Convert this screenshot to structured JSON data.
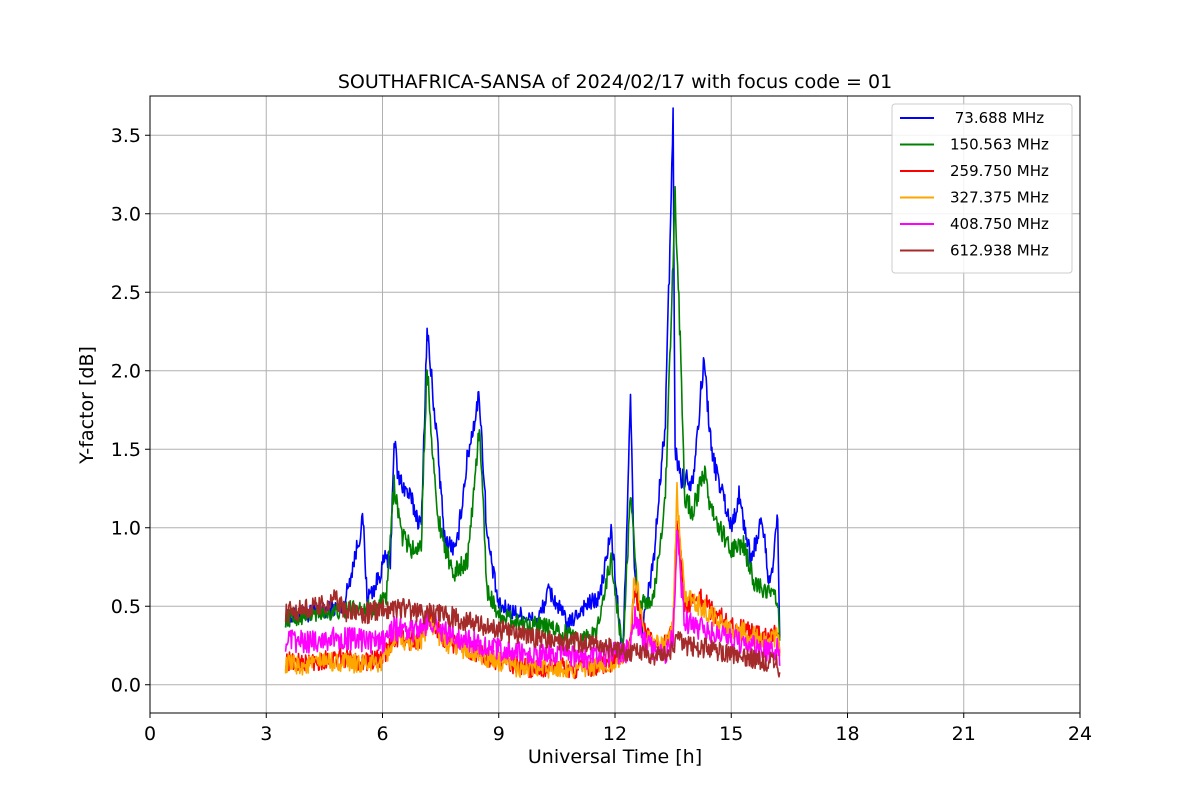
{
  "chart_data": {
    "type": "line",
    "title": "SOUTHAFRICA-SANSA of 2024/02/17 with focus code = 01",
    "xlabel": "Universal Time [h]",
    "ylabel": "Y-factor [dB]",
    "xlim": [
      0,
      24
    ],
    "ylim": [
      -0.18,
      3.75
    ],
    "xticks": [
      0,
      3,
      6,
      9,
      12,
      15,
      18,
      21,
      24
    ],
    "yticks": [
      0.0,
      0.5,
      1.0,
      1.5,
      2.0,
      2.5,
      3.0,
      3.5
    ],
    "x_tick_labels": [
      "0",
      "3",
      "6",
      "9",
      "12",
      "15",
      "18",
      "21",
      "24"
    ],
    "y_tick_labels": [
      "0.0",
      "0.5",
      "1.0",
      "1.5",
      "2.0",
      "2.5",
      "3.0",
      "3.5"
    ],
    "grid": true,
    "legend_position": "top-right",
    "series": [
      {
        "name": " 73.688 MHz",
        "color": "#0000ff",
        "x": [
          3.5,
          4.0,
          4.5,
          5.0,
          5.5,
          5.6,
          5.8,
          6.1,
          6.2,
          6.3,
          6.4,
          6.7,
          7.0,
          7.15,
          7.4,
          7.6,
          7.9,
          8.2,
          8.5,
          8.7,
          9.0,
          9.5,
          10.0,
          10.3,
          10.8,
          11.2,
          11.6,
          11.9,
          12.2,
          12.4,
          12.5,
          12.7,
          13.0,
          13.3,
          13.5,
          13.55,
          13.7,
          14.0,
          14.3,
          14.5,
          14.8,
          15.0,
          15.2,
          15.5,
          15.8,
          16.0,
          16.2,
          16.25
        ],
        "y": [
          0.42,
          0.45,
          0.47,
          0.5,
          1.05,
          0.55,
          0.62,
          0.82,
          0.75,
          1.58,
          1.32,
          1.2,
          1.0,
          2.26,
          1.58,
          0.93,
          0.85,
          1.46,
          1.85,
          0.95,
          0.5,
          0.45,
          0.4,
          0.6,
          0.38,
          0.5,
          0.55,
          0.98,
          0.15,
          1.83,
          0.7,
          0.35,
          0.8,
          1.68,
          3.58,
          1.5,
          1.32,
          1.3,
          2.07,
          1.46,
          1.2,
          1.0,
          1.2,
          0.8,
          1.05,
          0.6,
          1.06,
          0.3
        ]
      },
      {
        "name": "150.563 MHz",
        "color": "#008000",
        "x": [
          3.5,
          4.0,
          4.5,
          5.0,
          5.5,
          5.8,
          6.1,
          6.3,
          6.5,
          6.8,
          7.0,
          7.15,
          7.4,
          7.8,
          8.2,
          8.5,
          8.7,
          9.0,
          9.5,
          10.0,
          10.5,
          11.0,
          11.5,
          11.9,
          12.2,
          12.4,
          12.6,
          13.0,
          13.3,
          13.55,
          13.65,
          13.8,
          14.0,
          14.3,
          14.5,
          14.8,
          15.0,
          15.3,
          15.6,
          15.9,
          16.2,
          16.25
        ],
        "y": [
          0.42,
          0.44,
          0.46,
          0.47,
          0.5,
          0.48,
          0.55,
          1.28,
          0.95,
          0.85,
          0.9,
          2.05,
          1.1,
          0.7,
          0.8,
          1.64,
          0.6,
          0.45,
          0.4,
          0.38,
          0.35,
          0.3,
          0.32,
          0.8,
          0.2,
          1.22,
          0.5,
          0.55,
          1.2,
          3.08,
          2.45,
          1.2,
          1.1,
          1.35,
          1.1,
          0.95,
          0.85,
          0.9,
          0.65,
          0.6,
          0.55,
          0.28
        ]
      },
      {
        "name": "259.750 MHz",
        "color": "#ff0000",
        "x": [
          3.5,
          4.0,
          4.5,
          5.0,
          5.5,
          6.0,
          6.3,
          6.7,
          7.0,
          7.2,
          7.6,
          8.0,
          8.5,
          9.0,
          9.5,
          10.0,
          10.5,
          11.0,
          11.5,
          12.0,
          12.4,
          12.5,
          12.8,
          13.0,
          13.3,
          13.5,
          13.6,
          13.8,
          14.2,
          14.6,
          15.0,
          15.4,
          15.8,
          16.2,
          16.25
        ],
        "y": [
          0.15,
          0.14,
          0.16,
          0.17,
          0.15,
          0.16,
          0.3,
          0.28,
          0.3,
          0.45,
          0.28,
          0.25,
          0.2,
          0.15,
          0.12,
          0.1,
          0.12,
          0.1,
          0.12,
          0.15,
          0.25,
          0.6,
          0.3,
          0.28,
          0.25,
          0.35,
          1.1,
          0.5,
          0.55,
          0.45,
          0.38,
          0.35,
          0.3,
          0.32,
          0.2
        ]
      },
      {
        "name": "327.375 MHz",
        "color": "#ffa500",
        "x": [
          3.5,
          4.0,
          4.5,
          5.0,
          5.5,
          6.0,
          6.3,
          6.7,
          7.0,
          7.2,
          7.6,
          8.0,
          8.5,
          9.0,
          9.5,
          10.0,
          10.5,
          11.0,
          11.5,
          12.0,
          12.4,
          12.5,
          12.8,
          13.0,
          13.3,
          13.5,
          13.6,
          13.8,
          14.2,
          14.6,
          15.0,
          15.4,
          15.8,
          16.2,
          16.25
        ],
        "y": [
          0.13,
          0.12,
          0.15,
          0.14,
          0.13,
          0.14,
          0.28,
          0.27,
          0.29,
          0.4,
          0.27,
          0.24,
          0.19,
          0.14,
          0.11,
          0.1,
          0.11,
          0.1,
          0.11,
          0.14,
          0.22,
          0.72,
          0.3,
          0.27,
          0.24,
          0.4,
          1.22,
          0.55,
          0.5,
          0.42,
          0.35,
          0.33,
          0.28,
          0.3,
          0.18
        ]
      },
      {
        "name": "408.750 MHz",
        "color": "#ff00ff",
        "x": [
          3.5,
          4.0,
          4.5,
          5.0,
          5.5,
          6.0,
          6.3,
          6.7,
          7.0,
          7.2,
          7.6,
          8.0,
          8.5,
          9.0,
          9.5,
          10.0,
          10.5,
          11.0,
          11.5,
          12.0,
          12.4,
          12.5,
          12.8,
          13.0,
          13.3,
          13.5,
          13.6,
          13.8,
          14.2,
          14.6,
          15.0,
          15.4,
          15.8,
          16.2,
          16.25
        ],
        "y": [
          0.28,
          0.27,
          0.29,
          0.3,
          0.28,
          0.27,
          0.36,
          0.34,
          0.35,
          0.42,
          0.33,
          0.3,
          0.26,
          0.22,
          0.2,
          0.18,
          0.19,
          0.17,
          0.18,
          0.2,
          0.22,
          0.45,
          0.25,
          0.22,
          0.2,
          0.3,
          0.95,
          0.4,
          0.36,
          0.32,
          0.28,
          0.26,
          0.22,
          0.22,
          0.12
        ]
      },
      {
        "name": "612.938 MHz",
        "color": "#a52a2a",
        "x": [
          3.5,
          4.0,
          4.5,
          4.8,
          5.0,
          5.5,
          6.0,
          6.3,
          6.7,
          7.0,
          7.2,
          7.6,
          8.0,
          8.5,
          9.0,
          9.5,
          10.0,
          10.5,
          11.0,
          11.5,
          12.0,
          12.4,
          12.6,
          13.0,
          13.3,
          13.5,
          13.6,
          13.8,
          14.2,
          14.6,
          15.0,
          15.4,
          15.8,
          16.2,
          16.25
        ],
        "y": [
          0.46,
          0.48,
          0.5,
          0.55,
          0.47,
          0.45,
          0.48,
          0.5,
          0.48,
          0.45,
          0.46,
          0.44,
          0.42,
          0.38,
          0.35,
          0.32,
          0.3,
          0.28,
          0.27,
          0.26,
          0.22,
          0.2,
          0.23,
          0.18,
          0.2,
          0.22,
          0.32,
          0.25,
          0.24,
          0.22,
          0.2,
          0.18,
          0.15,
          0.14,
          0.08
        ]
      }
    ]
  }
}
